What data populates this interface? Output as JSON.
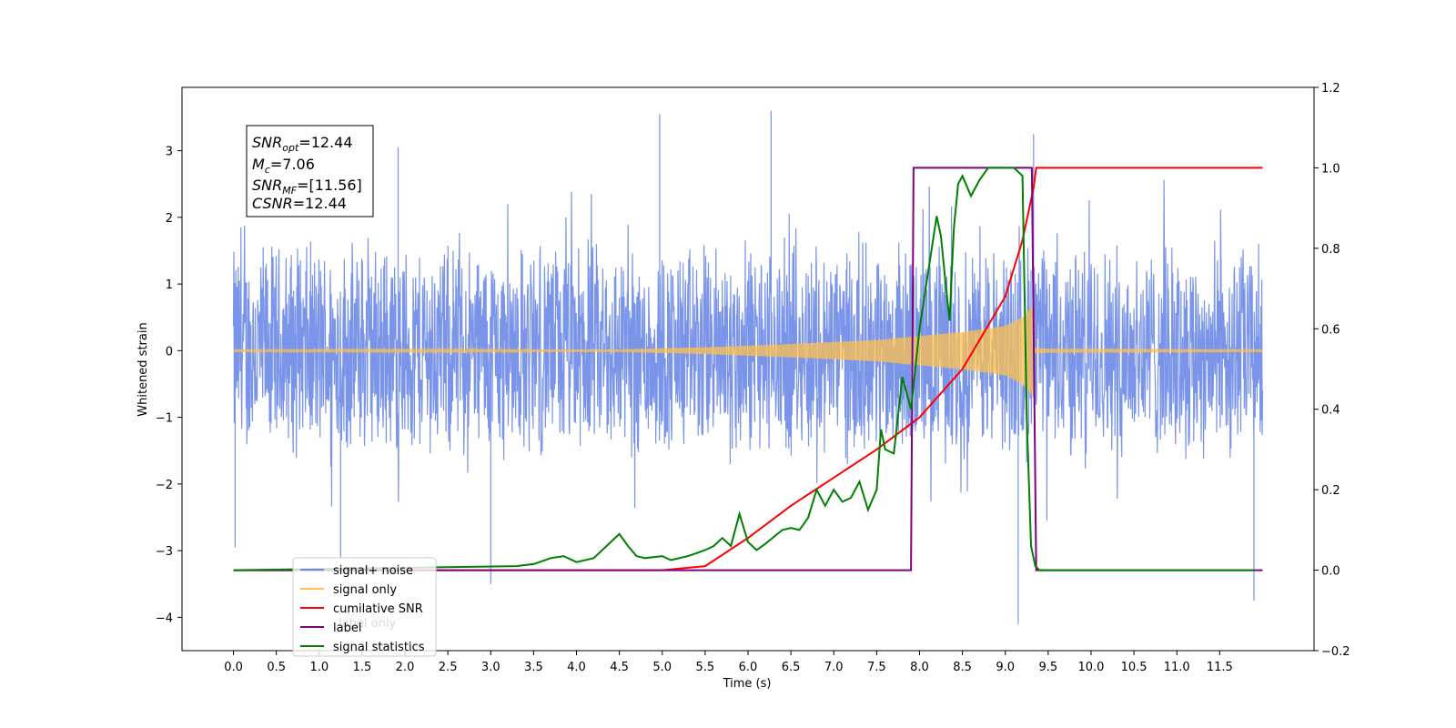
{
  "chart_data": {
    "type": "line",
    "xlabel": "Time (s)",
    "ylabel": "Whitened strain",
    "xlim": [
      -0.6,
      12.6
    ],
    "ylim": [
      -4.5,
      3.95
    ],
    "y2lim": [
      -0.2,
      1.2
    ],
    "grid": false,
    "legend_position": "lower-left",
    "xticks": [
      "0.0",
      "0.5",
      "1.0",
      "1.5",
      "2.0",
      "2.5",
      "3.0",
      "3.5",
      "4.0",
      "4.5",
      "5.0",
      "5.5",
      "6.0",
      "6.5",
      "7.0",
      "7.5",
      "8.0",
      "8.5",
      "9.0",
      "9.5",
      "10.0",
      "10.5",
      "11.0",
      "11.5"
    ],
    "yticks": [
      "3",
      "2",
      "1",
      "0",
      "−1",
      "−2",
      "−3",
      "−4"
    ],
    "y2ticks": [
      "1.2",
      "1.0",
      "0.8",
      "0.6",
      "0.4",
      "0.2",
      "0.0",
      "−0.2"
    ],
    "annotation": {
      "line1": {
        "base": "SNR",
        "sub": "opt",
        "value": "=12.44"
      },
      "line2": {
        "base": "M",
        "sub": "c",
        "value": "=7.06"
      },
      "line3": {
        "base": "SNR",
        "sub": "MF",
        "value": "=[11.56]"
      },
      "line4": {
        "base": "CSNR",
        "sub": "",
        "value": "=12.44"
      }
    },
    "legend": [
      {
        "label": "signal+ noise",
        "color": "#6a88e6"
      },
      {
        "label": "signal only",
        "color": "#ffc04d"
      },
      {
        "label": "cumilative SNR",
        "color": "#ff0000"
      },
      {
        "label": "label",
        "color": "#800080"
      },
      {
        "label": "signal statistics",
        "color": "#008000"
      }
    ],
    "hidden_legend_text": "label only",
    "series": [
      {
        "name": "signal+ noise",
        "axis": "left",
        "color": "#6a88e6",
        "noise_amplitude": 1.75,
        "x_start": 0.0,
        "x_end": 12.0,
        "notable_spikes": [
          {
            "x": 0.02,
            "y": -2.95
          },
          {
            "x": 1.25,
            "y": -3.1
          },
          {
            "x": 3.0,
            "y": -3.5
          },
          {
            "x": 4.97,
            "y": 3.55
          },
          {
            "x": 6.27,
            "y": 3.6
          },
          {
            "x": 9.15,
            "y": -4.1
          },
          {
            "x": 11.9,
            "y": -3.75
          },
          {
            "x": 9.33,
            "y": 3.25
          },
          {
            "x": 1.92,
            "y": 3.05
          }
        ]
      },
      {
        "name": "signal only",
        "axis": "left",
        "color": "#ffc04d",
        "envelope": {
          "x": [
            0,
            4.5,
            5.5,
            6.5,
            7.5,
            8.0,
            8.5,
            9.0,
            9.2,
            9.33,
            9.34,
            9.5,
            12.0
          ],
          "y": [
            0.01,
            0.02,
            0.05,
            0.1,
            0.16,
            0.22,
            0.28,
            0.37,
            0.5,
            0.7,
            0.04,
            0.03,
            0.02
          ]
        }
      },
      {
        "name": "cumilative SNR",
        "axis": "right",
        "color": "#ff0000",
        "x": [
          0,
          5.0,
          5.5,
          6.0,
          6.5,
          7.0,
          7.5,
          8.0,
          8.5,
          9.0,
          9.2,
          9.3,
          9.33,
          9.36,
          12.0
        ],
        "y": [
          0,
          0,
          0.01,
          0.08,
          0.16,
          0.23,
          0.3,
          0.38,
          0.5,
          0.68,
          0.82,
          0.92,
          0.95,
          1.0,
          1.0
        ]
      },
      {
        "name": "label",
        "axis": "right",
        "color": "#800080",
        "x": [
          0,
          7.9,
          7.93,
          9.31,
          9.36,
          12.0
        ],
        "y": [
          0,
          0,
          1.0,
          1.0,
          0,
          0
        ]
      },
      {
        "name": "signal statistics",
        "axis": "right",
        "color": "#008000",
        "x": [
          0,
          3.3,
          3.5,
          3.7,
          3.85,
          4.0,
          4.2,
          4.4,
          4.5,
          4.6,
          4.7,
          4.8,
          5.0,
          5.1,
          5.3,
          5.5,
          5.6,
          5.7,
          5.8,
          5.9,
          6.0,
          6.1,
          6.2,
          6.4,
          6.5,
          6.6,
          6.7,
          6.8,
          6.9,
          7.0,
          7.1,
          7.2,
          7.3,
          7.4,
          7.5,
          7.55,
          7.6,
          7.7,
          7.8,
          7.9,
          8.0,
          8.1,
          8.2,
          8.25,
          8.3,
          8.35,
          8.4,
          8.45,
          8.5,
          8.6,
          8.7,
          8.8,
          8.9,
          9.0,
          9.1,
          9.2,
          9.25,
          9.3,
          9.35,
          9.4,
          9.45,
          11.9
        ],
        "y": [
          0,
          0.01,
          0.015,
          0.03,
          0.035,
          0.02,
          0.03,
          0.07,
          0.09,
          0.06,
          0.035,
          0.03,
          0.035,
          0.025,
          0.035,
          0.05,
          0.06,
          0.08,
          0.06,
          0.14,
          0.07,
          0.05,
          0.065,
          0.1,
          0.105,
          0.1,
          0.13,
          0.2,
          0.16,
          0.2,
          0.17,
          0.18,
          0.22,
          0.15,
          0.2,
          0.35,
          0.3,
          0.29,
          0.48,
          0.4,
          0.6,
          0.74,
          0.88,
          0.83,
          0.72,
          0.62,
          0.85,
          0.96,
          0.98,
          0.93,
          0.97,
          1.0,
          1.0,
          1.0,
          1.0,
          0.98,
          0.38,
          0.06,
          0.01,
          0.0,
          0.0,
          0.0
        ]
      }
    ]
  }
}
